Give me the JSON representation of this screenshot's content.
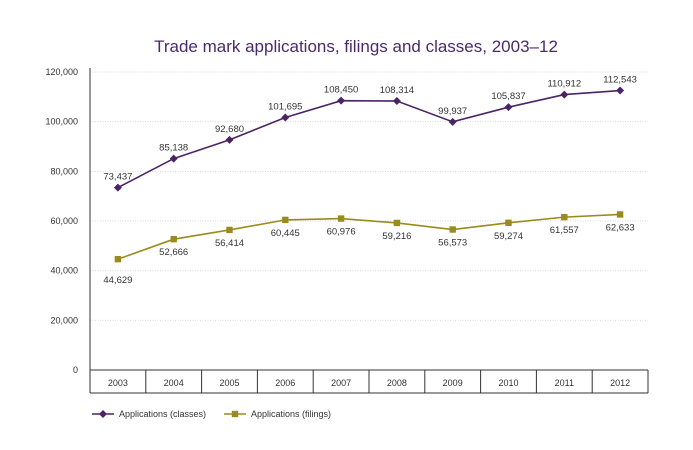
{
  "chart_data": {
    "type": "line",
    "title": "Trade mark applications, filings and classes, 2003–12",
    "xlabel": "",
    "ylabel": "",
    "ylim": [
      0,
      120000
    ],
    "yticks": [
      0,
      20000,
      40000,
      60000,
      80000,
      100000,
      120000
    ],
    "ytick_labels": [
      "0",
      "20,000",
      "40,000",
      "60,000",
      "80,000",
      "100,000",
      "120,000"
    ],
    "grid": true,
    "legend_position": "bottom-left",
    "categories": [
      "2003",
      "2004",
      "2005",
      "2006",
      "2007",
      "2008",
      "2009",
      "2010",
      "2011",
      "2012"
    ],
    "series": [
      {
        "name": "Applications (classes)",
        "color": "#4b2465",
        "marker": "diamond",
        "values": [
          73437,
          85138,
          92680,
          101695,
          108450,
          108314,
          99937,
          105837,
          110912,
          112543
        ],
        "labels": [
          "73,437",
          "85,138",
          "92,680",
          "101,695",
          "108,450",
          "108,314",
          "99,937",
          "105,837",
          "110,912",
          "112,543"
        ]
      },
      {
        "name": "Applications (filings)",
        "color": "#9a8b1e",
        "marker": "square",
        "values": [
          44629,
          52666,
          56414,
          60445,
          60976,
          59216,
          56573,
          59274,
          61557,
          62633
        ],
        "labels": [
          "44,629",
          "52,666",
          "56,414",
          "60,445",
          "60,976",
          "59,216",
          "56,573",
          "59,274",
          "61,557",
          "62,633"
        ]
      }
    ]
  }
}
